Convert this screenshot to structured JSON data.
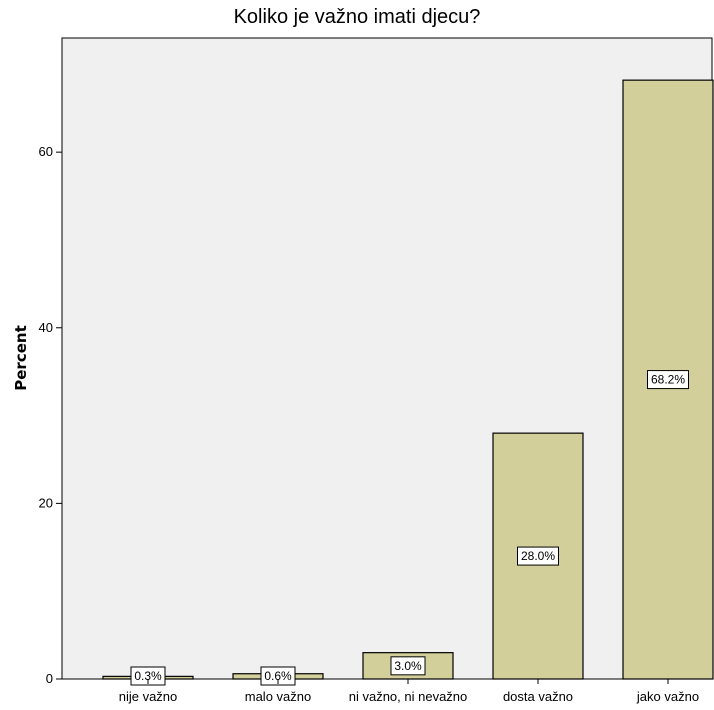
{
  "chart_data": {
    "type": "bar",
    "title": "Koliko je važno imati djecu?",
    "xlabel": "",
    "ylabel": "Percent",
    "categories": [
      "nije važno",
      "malo važno",
      "ni važno, ni nevažno",
      "dosta važno",
      "jako važno"
    ],
    "values": [
      0.3,
      0.6,
      3.0,
      28.0,
      68.2
    ],
    "data_labels": [
      "0.3%",
      "0.6%",
      "3.0%",
      "28.0%",
      "68.2%"
    ],
    "ylim": [
      0,
      73
    ],
    "yticks": [
      0,
      20,
      40,
      60
    ],
    "grid": false,
    "legend": "none",
    "colors": {
      "bar_fill": "#d3cf9a",
      "bar_stroke": "#000000",
      "plot_background": "#f0f0f0",
      "label_box_fill": "#ffffff"
    }
  }
}
